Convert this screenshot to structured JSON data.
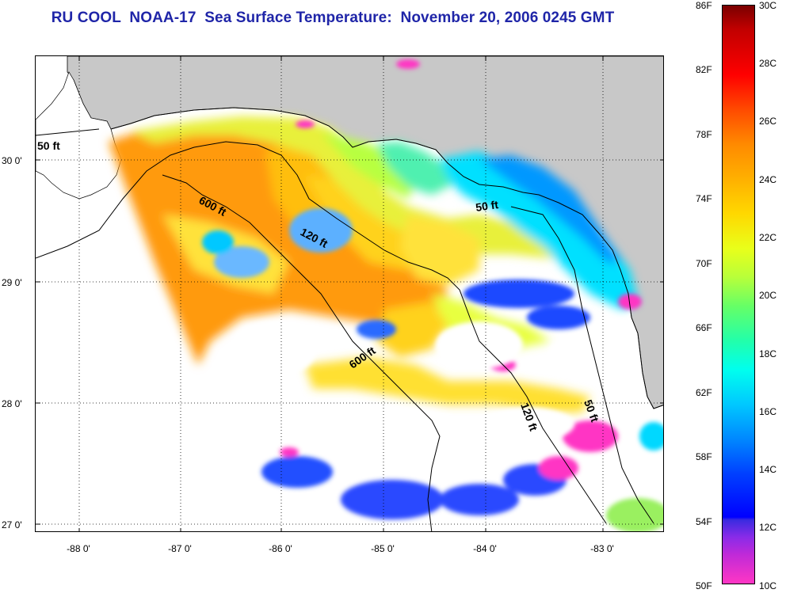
{
  "title": "RU COOL  NOAA-17  Sea Surface Temperature:  November 20, 2006 0245 GMT",
  "map": {
    "lat_labels": [
      "30 0'",
      "29 0'",
      "28 0'",
      "27 0'"
    ],
    "lon_labels": [
      "-88 0'",
      "-87 0'",
      "-86 0'",
      "-85 0'",
      "-84 0'",
      "-83 0'"
    ],
    "contour_labels": [
      "50 ft",
      "600 ft",
      "120 ft",
      "50 ft",
      "600 ft",
      "120 ft",
      "50 ft"
    ],
    "colors": {
      "land": "#c8c8c8",
      "no_data": "#ffffff",
      "grid": "#000000"
    }
  },
  "colorbar": {
    "f_labels": [
      "86F",
      "82F",
      "78F",
      "74F",
      "70F",
      "66F",
      "62F",
      "58F",
      "54F",
      "50F"
    ],
    "c_labels": [
      "30C",
      "28C",
      "26C",
      "24C",
      "22C",
      "20C",
      "18C",
      "16C",
      "14C",
      "12C",
      "10C"
    ]
  }
}
